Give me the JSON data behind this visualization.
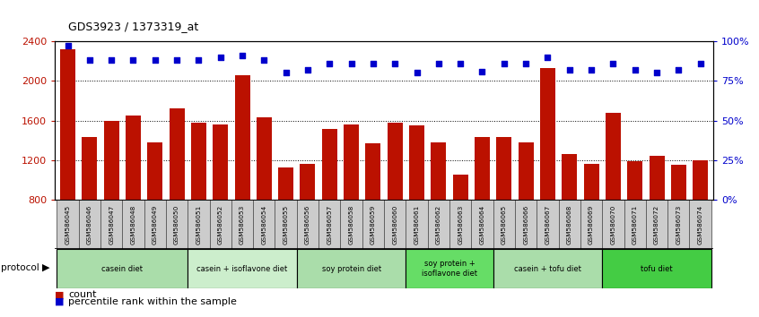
{
  "title": "GDS3923 / 1373319_at",
  "samples": [
    "GSM586045",
    "GSM586046",
    "GSM586047",
    "GSM586048",
    "GSM586049",
    "GSM586050",
    "GSM586051",
    "GSM586052",
    "GSM586053",
    "GSM586054",
    "GSM586055",
    "GSM586056",
    "GSM586057",
    "GSM586058",
    "GSM586059",
    "GSM586060",
    "GSM586061",
    "GSM586062",
    "GSM586063",
    "GSM586064",
    "GSM586065",
    "GSM586066",
    "GSM586067",
    "GSM586068",
    "GSM586069",
    "GSM586070",
    "GSM586071",
    "GSM586072",
    "GSM586073",
    "GSM586074"
  ],
  "counts": [
    2320,
    1430,
    1600,
    1650,
    1380,
    1720,
    1580,
    1560,
    2060,
    1630,
    1130,
    1165,
    1510,
    1560,
    1370,
    1580,
    1550,
    1380,
    1050,
    1430,
    1430,
    1380,
    2130,
    1265,
    1160,
    1680,
    1190,
    1240,
    1155,
    1195
  ],
  "percentile_ranks": [
    97,
    88,
    88,
    88,
    88,
    88,
    88,
    90,
    91,
    88,
    80,
    82,
    86,
    86,
    86,
    86,
    80,
    86,
    86,
    81,
    86,
    86,
    90,
    82,
    82,
    86,
    82,
    80,
    82,
    86
  ],
  "ylim_left": [
    800,
    2400
  ],
  "ylim_right": [
    0,
    100
  ],
  "yticks_left": [
    800,
    1200,
    1600,
    2000,
    2400
  ],
  "yticks_right": [
    0,
    25,
    50,
    75,
    100
  ],
  "bar_color": "#bb1100",
  "dot_color": "#0000cc",
  "background_color": "#ffffff",
  "plot_bg_color": "#ffffff",
  "tick_bg_color": "#cccccc",
  "protocols": [
    {
      "label": "casein diet",
      "start": 0,
      "end": 6,
      "color": "#aaddaa"
    },
    {
      "label": "casein + isoflavone diet",
      "start": 6,
      "end": 11,
      "color": "#cceecc"
    },
    {
      "label": "soy protein diet",
      "start": 11,
      "end": 16,
      "color": "#aaddaa"
    },
    {
      "label": "soy protein +\nisoflavone diet",
      "start": 16,
      "end": 20,
      "color": "#66dd66"
    },
    {
      "label": "casein + tofu diet",
      "start": 20,
      "end": 25,
      "color": "#aaddaa"
    },
    {
      "label": "tofu diet",
      "start": 25,
      "end": 30,
      "color": "#44cc44"
    }
  ],
  "legend_count_label": "count",
  "legend_pct_label": "percentile rank within the sample",
  "protocol_label": "protocol"
}
